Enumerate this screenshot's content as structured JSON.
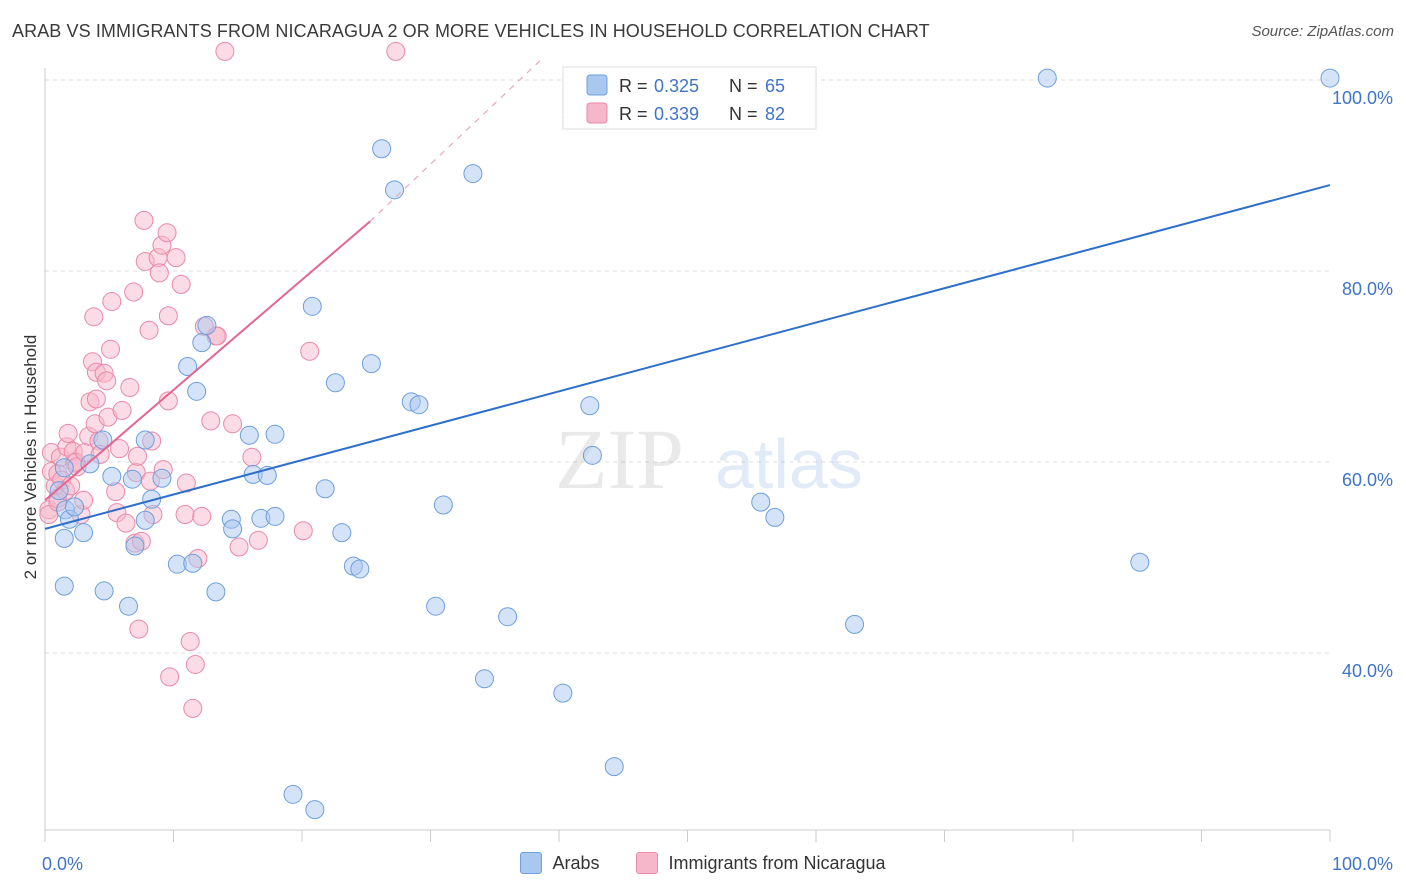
{
  "header": {
    "title": "ARAB VS IMMIGRANTS FROM NICARAGUA 2 OR MORE VEHICLES IN HOUSEHOLD CORRELATION CHART",
    "source": "Source: ZipAtlas.com"
  },
  "watermark": {
    "zip": "ZIP",
    "atlas": "atlas"
  },
  "colors": {
    "arabs_fill": "#a9c8f0",
    "arabs_stroke": "#6f9fdc",
    "arabs_line": "#2e6fcb",
    "nic_fill": "#f7b7cb",
    "nic_stroke": "#e98aa8",
    "nic_line": "#e46590",
    "axis_label": "#3f74c9",
    "grid": "#dddddd"
  },
  "legend_stats": [
    {
      "r_label": "R =",
      "r_value": "0.325",
      "n_label": "N =",
      "n_value": "65"
    },
    {
      "r_label": "R =",
      "r_value": "0.339",
      "n_label": "N =",
      "n_value": "82"
    }
  ],
  "chart_data": {
    "type": "scatter",
    "title": "ARAB VS IMMIGRANTS FROM NICARAGUA 2 OR MORE VEHICLES IN HOUSEHOLD CORRELATION CHART",
    "xlabel": "",
    "ylabel": "2 or more Vehicles in Household",
    "xlim": [
      0,
      100
    ],
    "ylim": [
      20,
      102
    ],
    "x_tick_labels": [
      "0.0%",
      "100.0%"
    ],
    "y_ticks": [
      40,
      60,
      80,
      100
    ],
    "y_tick_labels": [
      "40.0%",
      "60.0%",
      "80.0%",
      "100.0%"
    ],
    "grid": true,
    "legend_position": "top-center",
    "series": [
      {
        "name": "Arabs",
        "r": 0.325,
        "n": 65,
        "trend": {
          "x": [
            0,
            100
          ],
          "y": [
            53.0,
            89.0
          ]
        },
        "points": [
          [
            1.1,
            57.0
          ],
          [
            1.5,
            52.0
          ],
          [
            1.5,
            59.4
          ],
          [
            1.5,
            47.0
          ],
          [
            1.6,
            55.0
          ],
          [
            1.9,
            54.0
          ],
          [
            2.3,
            55.3
          ],
          [
            3.0,
            52.6
          ],
          [
            3.5,
            59.8
          ],
          [
            4.5,
            62.3
          ],
          [
            5.2,
            58.5
          ],
          [
            4.6,
            46.5
          ],
          [
            7.0,
            51.2
          ],
          [
            6.8,
            58.2
          ],
          [
            6.5,
            44.9
          ],
          [
            7.8,
            62.3
          ],
          [
            7.8,
            53.9
          ],
          [
            8.3,
            56.1
          ],
          [
            9.1,
            58.3
          ],
          [
            10.3,
            49.3
          ],
          [
            11.5,
            49.4
          ],
          [
            11.8,
            67.4
          ],
          [
            11.1,
            70.0
          ],
          [
            12.2,
            72.5
          ],
          [
            12.6,
            74.3
          ],
          [
            13.3,
            46.4
          ],
          [
            14.5,
            54.0
          ],
          [
            14.6,
            53.0
          ],
          [
            15.9,
            62.8
          ],
          [
            16.2,
            58.7
          ],
          [
            16.8,
            54.1
          ],
          [
            17.3,
            58.6
          ],
          [
            17.9,
            62.9
          ],
          [
            17.9,
            54.3
          ],
          [
            21.0,
            23.6
          ],
          [
            19.3,
            25.2
          ],
          [
            20.8,
            76.3
          ],
          [
            21.8,
            57.2
          ],
          [
            23.1,
            52.6
          ],
          [
            24.0,
            49.1
          ],
          [
            24.5,
            48.8
          ],
          [
            25.4,
            70.3
          ],
          [
            26.2,
            92.8
          ],
          [
            27.2,
            88.5
          ],
          [
            28.5,
            66.3
          ],
          [
            29.1,
            66.0
          ],
          [
            30.4,
            44.9
          ],
          [
            31.0,
            55.5
          ],
          [
            33.3,
            90.2
          ],
          [
            34.2,
            37.3
          ],
          [
            36.0,
            43.8
          ],
          [
            40.3,
            35.8
          ],
          [
            41.0,
            96.1
          ],
          [
            42.4,
            65.9
          ],
          [
            42.6,
            60.7
          ],
          [
            44.3,
            28.1
          ],
          [
            48.7,
            100.2
          ],
          [
            55.7,
            55.8
          ],
          [
            56.8,
            54.2
          ],
          [
            57.9,
            100.2
          ],
          [
            63.0,
            43.0
          ],
          [
            78.0,
            100.2
          ],
          [
            85.2,
            49.5
          ],
          [
            100.0,
            100.2
          ],
          [
            22.6,
            68.3
          ]
        ]
      },
      {
        "name": "Immigrants from Nicaragua",
        "r": 0.339,
        "n": 82,
        "trend": {
          "x": [
            0,
            25.3
          ],
          "y": [
            56.0,
            85.2
          ]
        },
        "trend_dashed": {
          "x": [
            25.3,
            38.5
          ],
          "y": [
            85.2,
            102.0
          ]
        },
        "points": [
          [
            0.3,
            55.0
          ],
          [
            0.3,
            54.5
          ],
          [
            0.5,
            59.0
          ],
          [
            0.5,
            61.0
          ],
          [
            0.8,
            57.5
          ],
          [
            1.0,
            56.2
          ],
          [
            1.0,
            58.8
          ],
          [
            1.0,
            55.8
          ],
          [
            1.2,
            60.5
          ],
          [
            1.3,
            58.1
          ],
          [
            1.6,
            57.0
          ],
          [
            1.7,
            61.6
          ],
          [
            1.8,
            63.0
          ],
          [
            2.0,
            57.5
          ],
          [
            2.2,
            61.1
          ],
          [
            2.3,
            59.9
          ],
          [
            2.4,
            60.0
          ],
          [
            2.5,
            59.5
          ],
          [
            2.8,
            54.5
          ],
          [
            3.0,
            56.0
          ],
          [
            3.1,
            61.0
          ],
          [
            3.4,
            62.7
          ],
          [
            3.5,
            66.3
          ],
          [
            3.7,
            70.5
          ],
          [
            3.8,
            75.2
          ],
          [
            3.9,
            64.0
          ],
          [
            4.0,
            66.6
          ],
          [
            4.0,
            69.4
          ],
          [
            4.2,
            62.2
          ],
          [
            4.3,
            60.8
          ],
          [
            4.6,
            69.3
          ],
          [
            4.8,
            68.5
          ],
          [
            4.9,
            64.7
          ],
          [
            5.1,
            71.8
          ],
          [
            5.2,
            76.8
          ],
          [
            5.5,
            56.9
          ],
          [
            5.6,
            54.7
          ],
          [
            5.8,
            61.4
          ],
          [
            6.0,
            65.4
          ],
          [
            6.3,
            53.6
          ],
          [
            6.6,
            67.8
          ],
          [
            6.9,
            77.8
          ],
          [
            7.0,
            51.5
          ],
          [
            7.1,
            58.9
          ],
          [
            7.2,
            60.6
          ],
          [
            7.3,
            42.5
          ],
          [
            7.5,
            51.7
          ],
          [
            7.7,
            85.3
          ],
          [
            7.8,
            81.0
          ],
          [
            8.1,
            73.8
          ],
          [
            8.2,
            58.0
          ],
          [
            8.3,
            62.2
          ],
          [
            8.4,
            54.5
          ],
          [
            8.8,
            81.4
          ],
          [
            8.9,
            79.8
          ],
          [
            9.1,
            82.7
          ],
          [
            9.2,
            59.2
          ],
          [
            9.5,
            84.0
          ],
          [
            9.6,
            75.3
          ],
          [
            9.6,
            66.4
          ],
          [
            9.7,
            37.5
          ],
          [
            10.2,
            81.4
          ],
          [
            10.6,
            78.6
          ],
          [
            10.9,
            54.5
          ],
          [
            11.0,
            57.8
          ],
          [
            11.3,
            41.2
          ],
          [
            11.5,
            34.2
          ],
          [
            11.7,
            38.8
          ],
          [
            11.9,
            49.9
          ],
          [
            12.2,
            54.3
          ],
          [
            12.9,
            64.3
          ],
          [
            13.3,
            73.2
          ],
          [
            13.4,
            73.2
          ],
          [
            14.0,
            103.0
          ],
          [
            14.6,
            64.0
          ],
          [
            15.1,
            51.1
          ],
          [
            16.1,
            60.5
          ],
          [
            16.6,
            51.8
          ],
          [
            20.1,
            52.8
          ],
          [
            27.3,
            103.0
          ],
          [
            20.6,
            71.6
          ],
          [
            12.4,
            74.2
          ]
        ]
      }
    ]
  }
}
